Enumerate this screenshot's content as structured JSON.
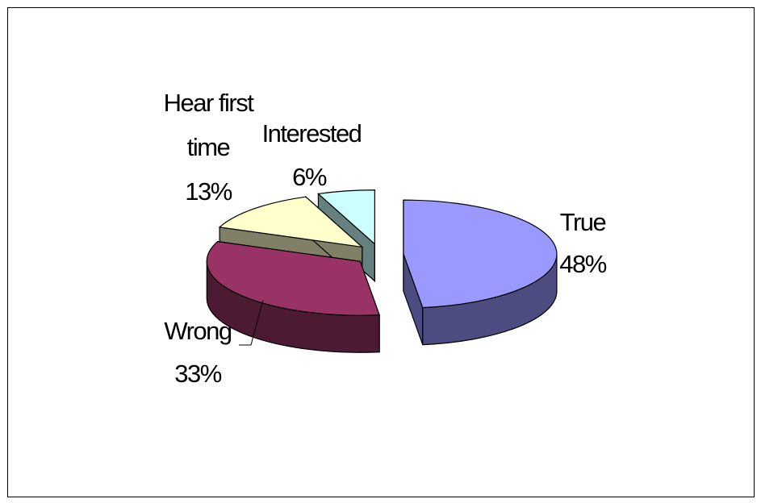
{
  "chart_data": {
    "type": "pie",
    "title": "",
    "style": "3d-exploded",
    "slices": [
      {
        "label": "True",
        "percent_label": "48%",
        "value": 48,
        "color": "#9999ff",
        "side_color": "#4c4c80"
      },
      {
        "label": "Wrong",
        "percent_label": "33%",
        "value": 33,
        "color": "#993366",
        "side_color": "#4c1a33"
      },
      {
        "label": "Hear first time",
        "label_lines": [
          "Hear first",
          "time"
        ],
        "percent_label": "13%",
        "value": 13,
        "color": "#ffffcc",
        "side_color": "#808066"
      },
      {
        "label": "Interested",
        "percent_label": "6%",
        "value": 6,
        "color": "#ccffff",
        "side_color": "#668080"
      }
    ]
  }
}
